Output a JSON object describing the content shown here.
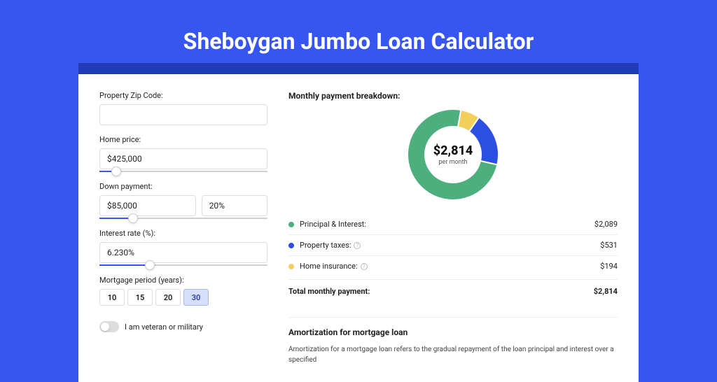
{
  "page": {
    "title": "Sheboygan Jumbo Loan Calculator",
    "bg_color": "#3756ef",
    "strip_color": "#1f3bb8",
    "card_bg": "#ffffff"
  },
  "form": {
    "zip": {
      "label": "Property Zip Code:",
      "value": ""
    },
    "home_price": {
      "label": "Home price:",
      "value": "$425,000",
      "slider_pct": 10
    },
    "down_payment": {
      "label": "Down payment:",
      "value": "$85,000",
      "pct_value": "20%",
      "slider_pct": 20
    },
    "interest_rate": {
      "label": "Interest rate (%):",
      "value": "6.230%",
      "slider_pct": 30
    },
    "period": {
      "label": "Mortgage period (years):",
      "options": [
        "10",
        "15",
        "20",
        "30"
      ],
      "active_index": 3
    },
    "veteran": {
      "label": "I am veteran or military",
      "checked": false
    }
  },
  "breakdown": {
    "title": "Monthly payment breakdown:",
    "center_amount": "$2,814",
    "center_sub": "per month",
    "items": [
      {
        "label": "Principal & Interest:",
        "value": "$2,089",
        "color": "#4caf7d",
        "pct": 74.2,
        "info": false
      },
      {
        "label": "Property taxes:",
        "value": "$531",
        "color": "#2b4fe0",
        "pct": 18.9,
        "info": true
      },
      {
        "label": "Home insurance:",
        "value": "$194",
        "color": "#f2cf5b",
        "pct": 6.9,
        "info": true
      }
    ],
    "total": {
      "label": "Total monthly payment:",
      "value": "$2,814"
    }
  },
  "amortization": {
    "title": "Amortization for mortgage loan",
    "text": "Amortization for a mortgage loan refers to the gradual repayment of the loan principal and interest over a specified"
  },
  "donut": {
    "outer_r": 65,
    "inner_r": 40,
    "bg": "#ffffff"
  }
}
